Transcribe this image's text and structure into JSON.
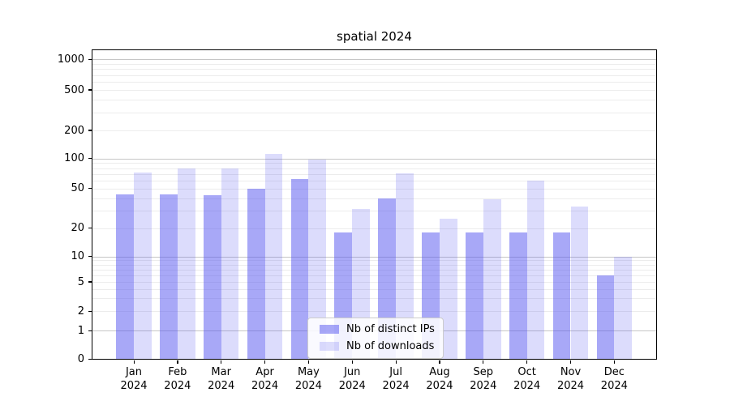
{
  "title": "spatial 2024",
  "colors": {
    "bar_distinct_ips": "rgba(82,82,240,0.50)",
    "bar_downloads": "rgba(82,82,240,0.20)",
    "grid_major": "#c6c6c6",
    "grid_minor": "#ececec",
    "axis": "#000000",
    "background": "#ffffff"
  },
  "chart_data": {
    "type": "bar",
    "title": "spatial 2024",
    "categories": [
      "Jan 2024",
      "Feb 2024",
      "Mar 2024",
      "Apr 2024",
      "May 2024",
      "Jun 2024",
      "Jul 2024",
      "Aug 2024",
      "Sep 2024",
      "Oct 2024",
      "Nov 2024",
      "Dec 2024"
    ],
    "series": [
      {
        "name": "Nb of distinct IPs",
        "color": "rgba(82,82,240,0.50)",
        "values": [
          44,
          44,
          43,
          50,
          62,
          18,
          40,
          18,
          18,
          18,
          18,
          6
        ]
      },
      {
        "name": "Nb of downloads",
        "color": "rgba(82,82,240,0.20)",
        "values": [
          72,
          79,
          79,
          113,
          97,
          31,
          71,
          25,
          39,
          60,
          33,
          10
        ]
      }
    ],
    "yscale": "log (with 0 shown at axis base)",
    "yticks": [
      0,
      1,
      2,
      5,
      10,
      20,
      50,
      100,
      200,
      500,
      1000
    ],
    "ylim": [
      0,
      1300
    ],
    "xlabel": "",
    "ylabel": "",
    "grid": true,
    "legend_position": "lower center"
  }
}
